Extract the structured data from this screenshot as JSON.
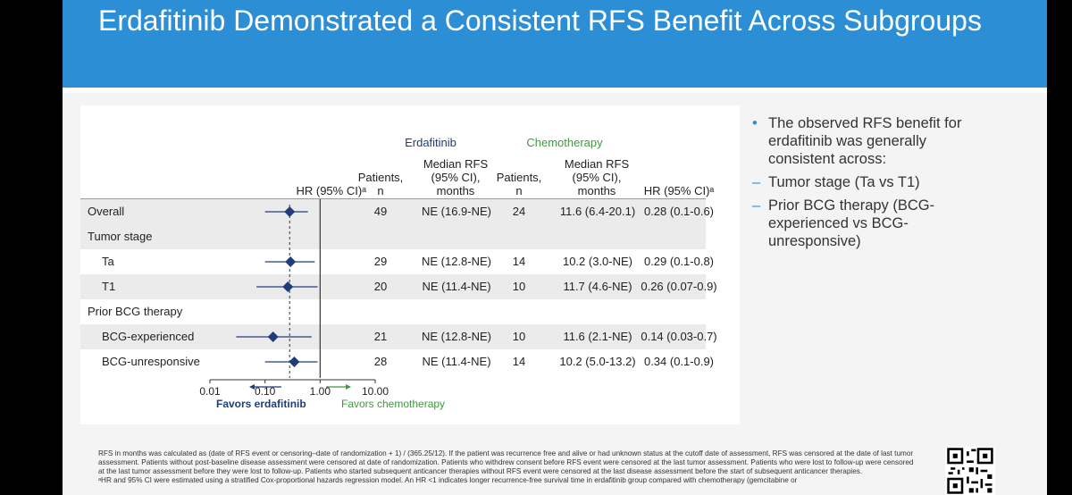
{
  "slide": {
    "title": "Erdafitinib Demonstrated a Consistent RFS Benefit Across Subgroups"
  },
  "colors": {
    "header": "#2c8ed4",
    "erdafitinib": "#1f3d7a",
    "chemotherapy": "#3d9a3d",
    "marker": "#1f3d7a",
    "accent_line": "#e08a2c"
  },
  "table": {
    "group_erdafitinib": "Erdafitinib",
    "group_chemotherapy": "Chemotherapy",
    "col_hr_plot": "HR (95% CI)ᵃ",
    "col_patients_erd": "Patients,\nn",
    "col_median_erd": "Median RFS\n(95% CI),\nmonths",
    "col_patients_chemo": "Patients,\nn",
    "col_median_chemo": "Median RFS\n(95% CI),\nmonths",
    "col_hr": "HR (95% CI)ᵃ",
    "favors_erdafitinib": "Favors erdafitinib",
    "favors_chemotherapy": "Favors chemotherapy"
  },
  "chart_data": {
    "type": "forest",
    "x_scale": "log",
    "xlim": [
      0.01,
      10
    ],
    "x_ticks": [
      "0.01",
      "0.10",
      "1.00",
      "10.00"
    ],
    "x_tick_values": [
      0.01,
      0.1,
      1,
      10
    ],
    "reference_line": 1,
    "dashed_line": 0.28,
    "rows": [
      {
        "label": "Overall",
        "kind": "data",
        "indent": false,
        "shaded": true,
        "patients_erd": "49",
        "median_erd": "NE (16.9-NE)",
        "patients_chemo": "24",
        "median_chemo": "11.6 (6.4-20.1)",
        "hr_text": "0.28 (0.1-0.6)",
        "hr": 0.28,
        "ci": [
          0.1,
          0.6
        ]
      },
      {
        "label": "Tumor stage",
        "kind": "header",
        "indent": false,
        "shaded": true
      },
      {
        "label": "Ta",
        "kind": "data",
        "indent": true,
        "shaded": false,
        "patients_erd": "29",
        "median_erd": "NE (12.8-NE)",
        "patients_chemo": "14",
        "median_chemo": "10.2 (3.0-NE)",
        "hr_text": "0.29 (0.1-0.8)",
        "hr": 0.29,
        "ci": [
          0.1,
          0.8
        ]
      },
      {
        "label": "T1",
        "kind": "data",
        "indent": true,
        "shaded": true,
        "patients_erd": "20",
        "median_erd": "NE (11.4-NE)",
        "patients_chemo": "10",
        "median_chemo": "11.7 (4.6-NE)",
        "hr_text": "0.26 (0.07-0.9)",
        "hr": 0.26,
        "ci": [
          0.07,
          0.9
        ]
      },
      {
        "label": "Prior BCG therapy",
        "kind": "header",
        "indent": false,
        "shaded": false
      },
      {
        "label": "BCG-experienced",
        "kind": "data",
        "indent": true,
        "shaded": true,
        "patients_erd": "21",
        "median_erd": "NE (12.8-NE)",
        "patients_chemo": "10",
        "median_chemo": "11.6 (2.1-NE)",
        "hr_text": "0.14 (0.03-0.7)",
        "hr": 0.14,
        "ci": [
          0.03,
          0.7
        ]
      },
      {
        "label": "BCG-unresponsive",
        "kind": "data",
        "indent": true,
        "shaded": false,
        "patients_erd": "28",
        "median_erd": "NE (11.4-NE)",
        "patients_chemo": "14",
        "median_chemo": "10.2 (5.0-13.2)",
        "hr_text": "0.34 (0.1-0.9)",
        "hr": 0.34,
        "ci": [
          0.1,
          0.9
        ]
      }
    ]
  },
  "bullets": [
    {
      "marker": "•",
      "text": "The observed RFS benefit for erdafitinib was generally consistent across:"
    },
    {
      "marker": "–",
      "text": "Tumor stage (Ta vs T1)"
    },
    {
      "marker": "–",
      "text": "Prior BCG therapy (BCG-experienced vs BCG-unresponsive)"
    }
  ],
  "footnotes": {
    "line1": "RFS in months was calculated as (date of RFS event or censoring–date of randomization + 1) / (365.25/12). If the patient was recurrence free and alive or had unknown status at the cutoff date of assessment, RFS was censored at the date of last tumor assessment. Patients without post-baseline disease assessment were censored at date of randomization. Patients who withdrew consent before RFS event were censored at the last tumor assessment. Patients who were lost to follow-up were censored at the last tumor assessment before they were lost to follow-up. Patients who started subsequent anticancer therapies without RFS event were censored at the last disease assessment before the start of subsequent anticancer therapies.",
    "line2": "ᵃHR and 95% CI were estimated using a stratified Cox-proportional hazards regression model. An HR <1 indicates longer recurrence-free survival time in erdafitinib group compared with chemotherapy (gemcitabine or"
  }
}
